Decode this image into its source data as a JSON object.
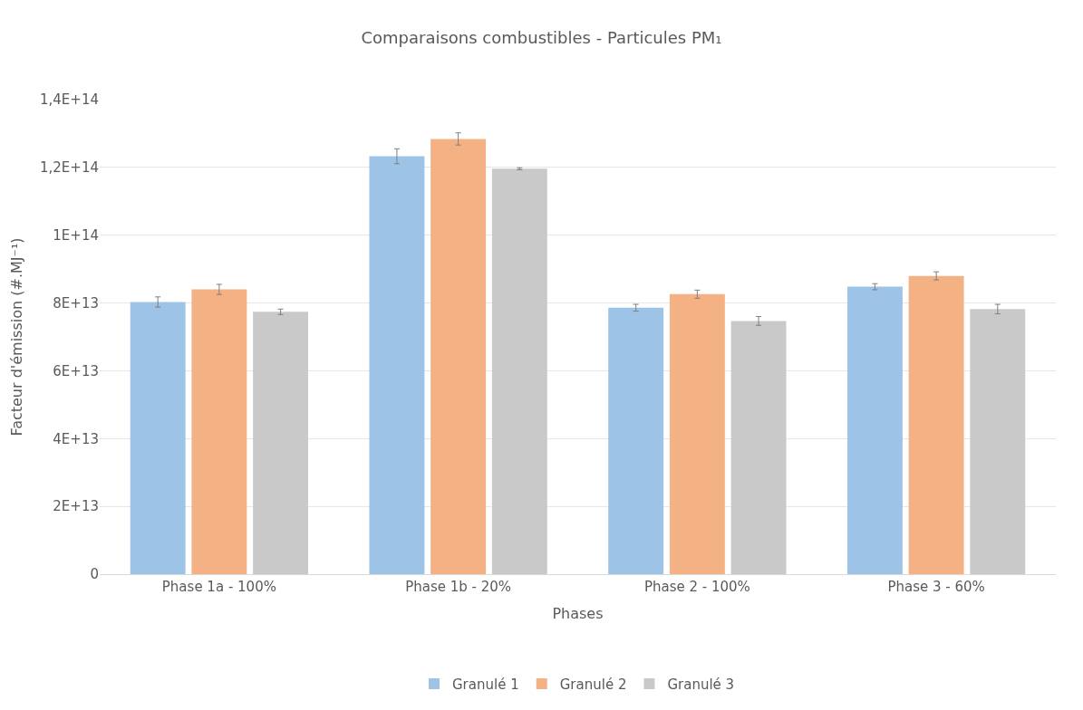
{
  "chart_data": {
    "type": "bar",
    "title": "Comparaisons combustibles - Particules PM₁",
    "xlabel": "Phases",
    "ylabel": "Facteur d'émission (#.MJ⁻¹)",
    "categories": [
      "Phase 1a - 100%",
      "Phase 1b - 20%",
      "Phase 2 - 100%",
      "Phase 3 - 60%"
    ],
    "series": [
      {
        "name": "Granulé 1",
        "color": "#9dc3e6",
        "values": [
          80300000000000.0,
          123300000000000.0,
          78600000000000.0,
          84800000000000.0
        ],
        "errors": [
          1500000000000.0,
          2200000000000.0,
          1000000000000.0,
          900000000000.0
        ]
      },
      {
        "name": "Granulé 2",
        "color": "#f4b183",
        "values": [
          84000000000000.0,
          128400000000000.0,
          82600000000000.0,
          88000000000000.0
        ],
        "errors": [
          1500000000000.0,
          1800000000000.0,
          1200000000000.0,
          1200000000000.0
        ]
      },
      {
        "name": "Granulé 3",
        "color": "#c9c9c9",
        "values": [
          77400000000000.0,
          119600000000000.0,
          74700000000000.0,
          78200000000000.0
        ],
        "errors": [
          800000000000.0,
          300000000000.0,
          1300000000000.0,
          1400000000000.0
        ]
      }
    ],
    "ylim": [
      0,
      140000000000000.0
    ],
    "yticks": [
      0,
      {
        "value": 20000000000000.0,
        "label": "2E+13"
      },
      {
        "value": 40000000000000.0,
        "label": "4E+13"
      },
      {
        "value": 60000000000000.0,
        "label": "6E+13"
      },
      {
        "value": 80000000000000.0,
        "label": "8E+13"
      },
      {
        "value": 100000000000000.0,
        "label": "1E+14"
      },
      {
        "value": 120000000000000.0,
        "label": "1,2E+14"
      },
      {
        "value": 140000000000000.0,
        "label": "1,4E+14"
      }
    ],
    "grid": "y",
    "legend": "bottom"
  }
}
